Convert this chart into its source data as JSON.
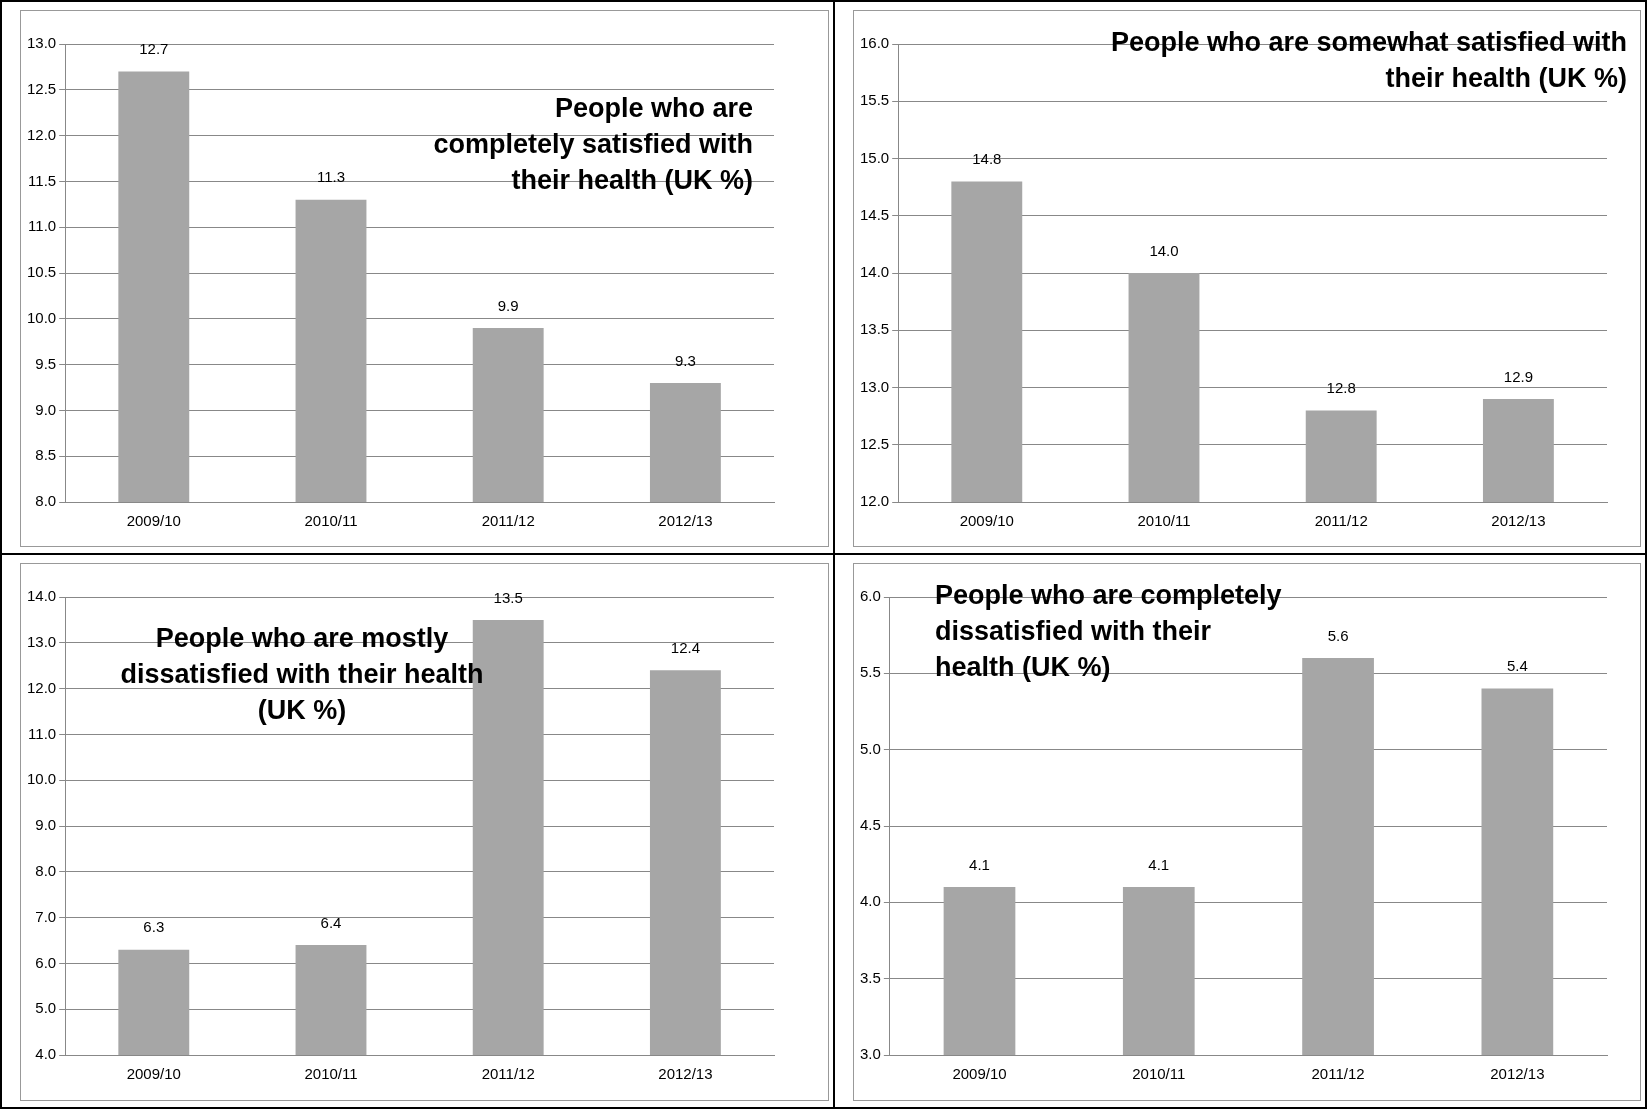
{
  "chart_data": [
    {
      "type": "bar",
      "title": "People who are completely satisfied with their health (UK %)",
      "categories": [
        "2009/10",
        "2010/11",
        "2011/12",
        "2012/13"
      ],
      "values": [
        12.7,
        11.3,
        9.9,
        9.3
      ],
      "color": "#a6a6a6",
      "ylim": [
        8,
        13
      ],
      "yticks": [
        {
          "value": 8,
          "label": "8.0"
        },
        {
          "value": 8.5,
          "label": "8.5"
        },
        {
          "value": 9,
          "label": "9.0"
        },
        {
          "value": 9.5,
          "label": "9.5"
        },
        {
          "value": 10,
          "label": "10.0"
        },
        {
          "value": 10.5,
          "label": "10.5"
        },
        {
          "value": 11,
          "label": "11.0"
        },
        {
          "value": 11.5,
          "label": "11.5"
        },
        {
          "value": 12,
          "label": "12.0"
        },
        {
          "value": 12.5,
          "label": "12.5"
        },
        {
          "value": 13,
          "label": "13.0"
        }
      ],
      "grid": "y",
      "data_labels": true
    },
    {
      "type": "bar",
      "title": "People who are somewhat satisfied with their health (UK %)",
      "categories": [
        "2009/10",
        "2010/11",
        "2011/12",
        "2012/13"
      ],
      "values": [
        14.8,
        14.0,
        12.8,
        12.9
      ],
      "value_labels": [
        "14.8",
        "14.0",
        "12.8",
        "12.9"
      ],
      "color": "#a6a6a6",
      "ylim": [
        12,
        16
      ],
      "yticks": [
        {
          "value": 12,
          "label": "12.0"
        },
        {
          "value": 12.5,
          "label": "12.5"
        },
        {
          "value": 13,
          "label": "13.0"
        },
        {
          "value": 13.5,
          "label": "13.5"
        },
        {
          "value": 14,
          "label": "14.0"
        },
        {
          "value": 14.5,
          "label": "14.5"
        },
        {
          "value": 15,
          "label": "15.0"
        },
        {
          "value": 15.5,
          "label": "15.5"
        },
        {
          "value": 16,
          "label": "16.0"
        }
      ],
      "grid": "y"
    },
    {
      "type": "bar",
      "title": "People who are mostly dissatisfied with their health (UK %)",
      "categories": [
        "2009/10",
        "2010/11",
        "2011/12",
        "2012/13"
      ],
      "values": [
        6.3,
        6.4,
        13.5,
        12.4
      ],
      "color": "#a6a6a6",
      "ylim": [
        4,
        14
      ],
      "yticks": [
        {
          "value": 4,
          "label": "4.0"
        },
        {
          "value": 5,
          "label": "5.0"
        },
        {
          "value": 6,
          "label": "6.0"
        },
        {
          "value": 7,
          "label": "7.0"
        },
        {
          "value": 8,
          "label": "8.0"
        },
        {
          "value": 9,
          "label": "9.0"
        },
        {
          "value": 10,
          "label": "10.0"
        },
        {
          "value": 11,
          "label": "11.0"
        },
        {
          "value": 12,
          "label": "12.0"
        },
        {
          "value": 13,
          "label": "13.0"
        },
        {
          "value": 14,
          "label": "14.0"
        }
      ],
      "grid": "y",
      "data_labels": true
    },
    {
      "type": "bar",
      "title": "People who are completely dissatisfied with their health (UK %)",
      "categories": [
        "2009/10",
        "2010/11",
        "2011/12",
        "2012/13"
      ],
      "values": [
        4.1,
        4.1,
        5.6,
        5.4
      ],
      "color": "#a6a6a6",
      "ylim": [
        3,
        6
      ],
      "yticks": [
        {
          "value": 3,
          "label": "3.0"
        },
        {
          "value": 3.5,
          "label": "3.5"
        },
        {
          "value": 4,
          "label": "4.0"
        },
        {
          "value": 4.5,
          "label": "4.5"
        },
        {
          "value": 5,
          "label": "5.0"
        },
        {
          "value": 5.5,
          "label": "5.5"
        },
        {
          "value": 6,
          "label": "6.0"
        }
      ],
      "grid": "y",
      "data_labels": true
    }
  ]
}
